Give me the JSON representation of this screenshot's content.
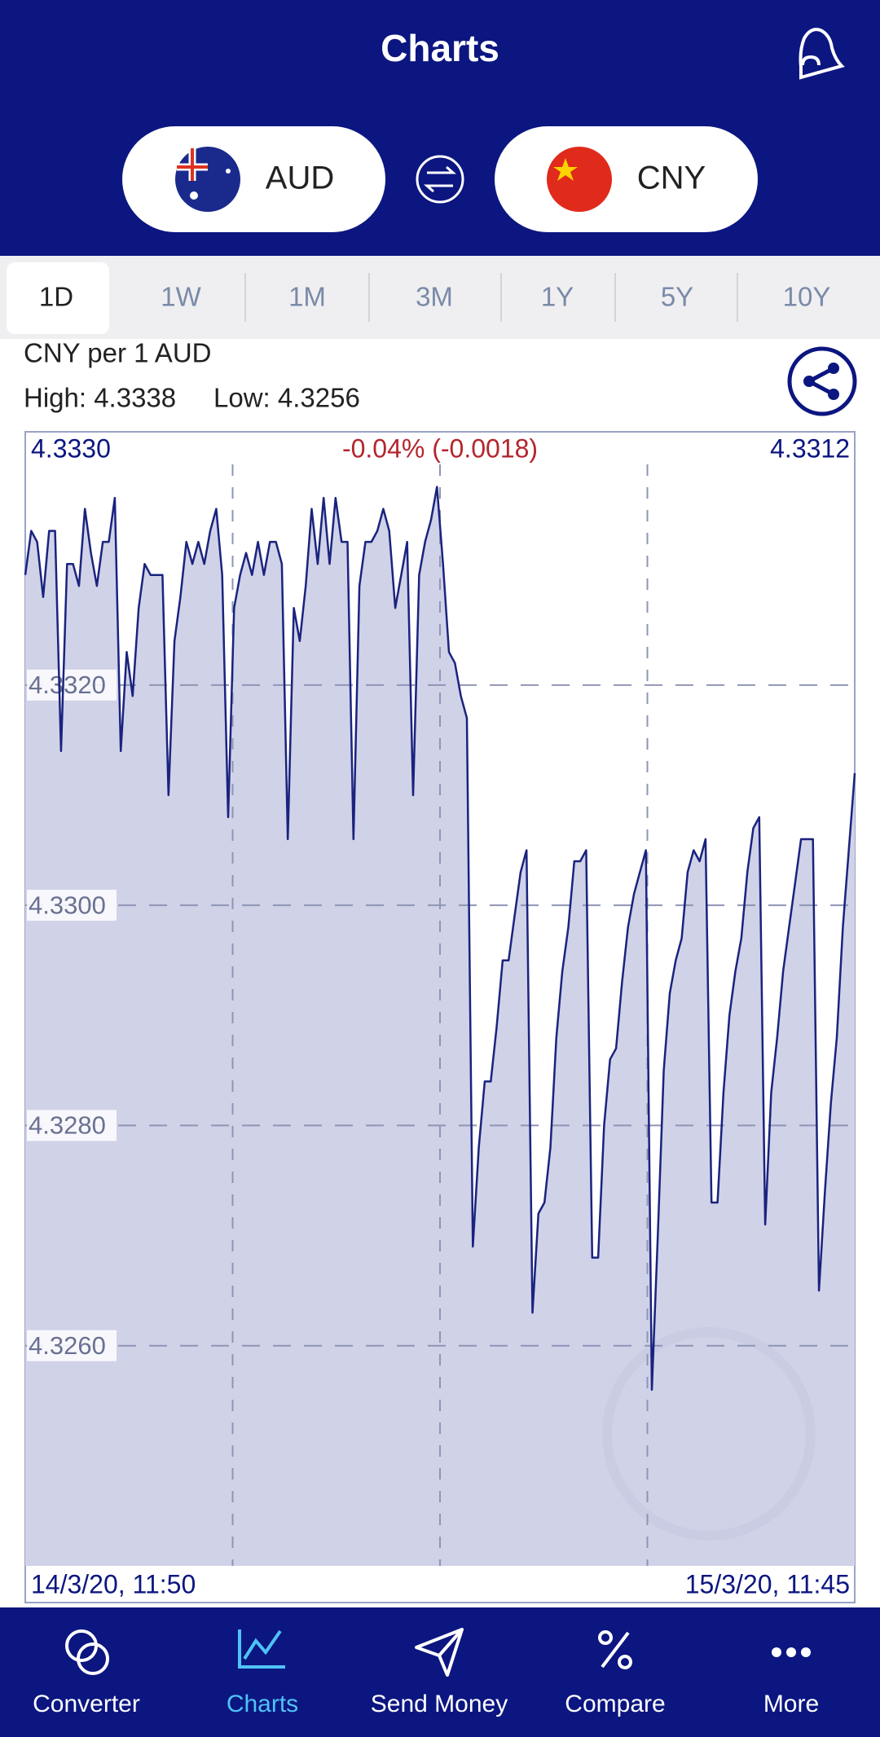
{
  "header": {
    "title": "Charts",
    "base": "AUD",
    "quote": "CNY"
  },
  "tabs": {
    "items": [
      "1D",
      "1W",
      "1M",
      "3M",
      "1Y",
      "5Y",
      "10Y"
    ],
    "selected": "1D"
  },
  "info": {
    "pair": "CNY per 1 AUD",
    "high": "High: 4.3338",
    "low": "Low: 4.3256"
  },
  "chart_data": {
    "type": "area",
    "color": "#1a237e",
    "fill": "#d0d2e8",
    "open_label": "4.3330",
    "change_label": "-0.04% (-0.0018)",
    "close_label": "4.3312",
    "ylim": [
      4.324,
      4.3343
    ],
    "yticks": [
      {
        "value": 4.332,
        "label": "4.3320"
      },
      {
        "value": 4.33,
        "label": "4.3300"
      },
      {
        "value": 4.328,
        "label": "4.3280"
      },
      {
        "value": 4.326,
        "label": "4.3260"
      }
    ],
    "grid": true,
    "categories": [
      "14/3/20, 11:50",
      null,
      null,
      null,
      null,
      null,
      null,
      null,
      null,
      null,
      null,
      null,
      null,
      null,
      null,
      null,
      null,
      null,
      null,
      null,
      null,
      null,
      null,
      null,
      null,
      null,
      null,
      null,
      null,
      null,
      null,
      null,
      null,
      null,
      null,
      null,
      null,
      null,
      null,
      null,
      null,
      null,
      null,
      null,
      null,
      null,
      null,
      null,
      null,
      null,
      null,
      null,
      null,
      null,
      null,
      null,
      null,
      null,
      null,
      null,
      null,
      null,
      null,
      null,
      null,
      null,
      null,
      null,
      null,
      null,
      null,
      null,
      null,
      null,
      null,
      null,
      null,
      null,
      null,
      null,
      null,
      null,
      null,
      null,
      null,
      null,
      null,
      null,
      null,
      null,
      null,
      null,
      null,
      null,
      null,
      null,
      null,
      null,
      null,
      null,
      null,
      null,
      null,
      null,
      null,
      null,
      null,
      null,
      null,
      null,
      null,
      null,
      null,
      null,
      null,
      null,
      null,
      null,
      null,
      null,
      null,
      null,
      null,
      null,
      null,
      null,
      null,
      null,
      null,
      null,
      null,
      null,
      null,
      null,
      null,
      null,
      null,
      null,
      null,
      "15/3/20, 11:45"
    ],
    "values": [
      4.333,
      4.3334,
      4.3333,
      4.3328,
      4.3334,
      4.3334,
      4.3314,
      4.3331,
      4.3331,
      4.3329,
      4.3336,
      4.3332,
      4.3329,
      4.3333,
      4.3333,
      4.3337,
      4.3314,
      4.3323,
      4.3319,
      4.3327,
      4.3331,
      4.333,
      4.333,
      4.333,
      4.331,
      4.3324,
      4.3328,
      4.3333,
      4.3331,
      4.3333,
      4.3331,
      4.3334,
      4.3336,
      4.333,
      4.3308,
      4.3327,
      4.333,
      4.3332,
      4.333,
      4.3333,
      4.333,
      4.3333,
      4.3333,
      4.3331,
      4.3306,
      4.3327,
      4.3324,
      4.3329,
      4.3336,
      4.3331,
      4.3337,
      4.3331,
      4.3337,
      4.3333,
      4.3333,
      4.3306,
      4.3329,
      4.3333,
      4.3333,
      4.3334,
      4.3336,
      4.3334,
      4.3327,
      4.333,
      4.3333,
      4.331,
      4.333,
      4.3333,
      4.3335,
      4.3338,
      4.3331,
      4.3323,
      4.3322,
      4.3319,
      4.3317,
      4.3269,
      4.3278,
      4.3284,
      4.3284,
      4.3289,
      4.3295,
      4.3295,
      4.3299,
      4.3303,
      4.3305,
      4.3263,
      4.3272,
      4.3273,
      4.3278,
      4.3288,
      4.3294,
      4.3298,
      4.3304,
      4.3304,
      4.3305,
      4.3268,
      4.3268,
      4.328,
      4.3286,
      4.3287,
      4.3293,
      4.3298,
      4.3301,
      4.3303,
      4.3305,
      4.3256,
      4.327,
      4.3285,
      4.3292,
      4.3295,
      4.3297,
      4.3303,
      4.3305,
      4.3304,
      4.3306,
      4.3273,
      4.3273,
      4.3283,
      4.329,
      4.3294,
      4.3297,
      4.3303,
      4.3307,
      4.3308,
      4.3271,
      4.3283,
      4.3288,
      4.3294,
      4.3298,
      4.3302,
      4.3306,
      4.3306,
      4.3306,
      4.3265,
      4.3274,
      4.3282,
      4.3288,
      4.3298,
      4.3305,
      4.3312
    ]
  },
  "nav": {
    "items": [
      "Converter",
      "Charts",
      "Send Money",
      "Compare",
      "More"
    ],
    "active": "Charts"
  }
}
